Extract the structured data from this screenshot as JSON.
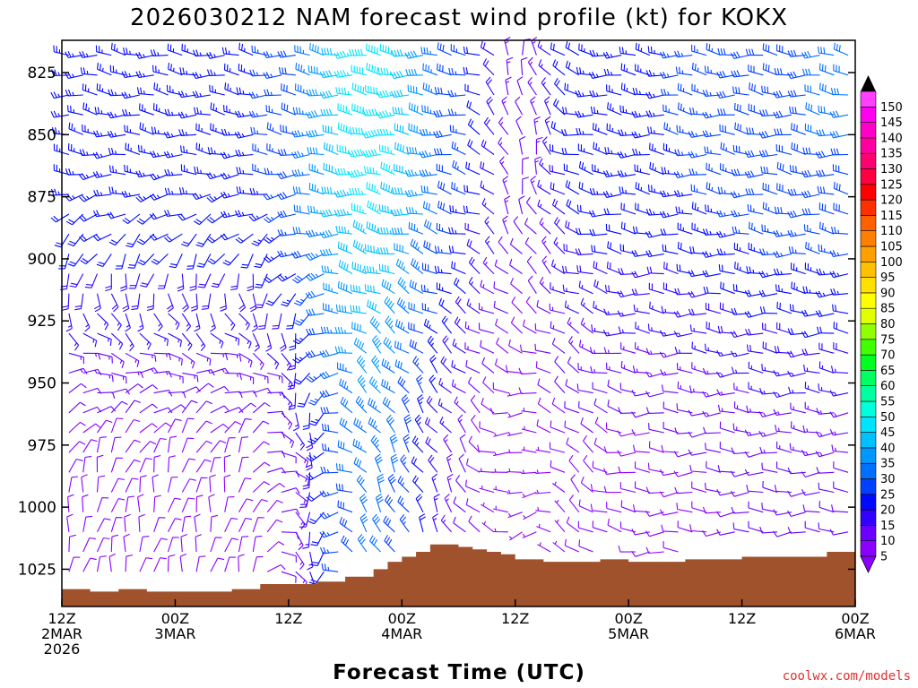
{
  "chart_data": {
    "type": "wind-barb-profile",
    "title": "2026030212 NAM forecast wind profile (kt) for KOKX",
    "xlabel": "Forecast Time (UTC)",
    "credit": "coolwx.com/models",
    "x_ticks": [
      {
        "hours": 0,
        "lines": [
          "12Z",
          "2MAR",
          "2026"
        ]
      },
      {
        "hours": 12,
        "lines": [
          "00Z",
          "3MAR"
        ]
      },
      {
        "hours": 24,
        "lines": [
          "12Z"
        ]
      },
      {
        "hours": 36,
        "lines": [
          "00Z",
          "4MAR"
        ]
      },
      {
        "hours": 48,
        "lines": [
          "12Z"
        ]
      },
      {
        "hours": 60,
        "lines": [
          "00Z",
          "5MAR"
        ]
      },
      {
        "hours": 72,
        "lines": [
          "12Z"
        ]
      },
      {
        "hours": 84,
        "lines": [
          "00Z",
          "6MAR"
        ]
      }
    ],
    "xlim_hours": [
      0,
      84
    ],
    "y_axis": {
      "unit": "hPa",
      "inverted": true,
      "ticks": [
        "825",
        "850",
        "875",
        "900",
        "925",
        "950",
        "975",
        "1000",
        "1025"
      ],
      "ylim": [
        812,
        1040
      ]
    },
    "colorbar": {
      "unit": "kt",
      "levels": [
        "5",
        "10",
        "15",
        "20",
        "25",
        "30",
        "35",
        "40",
        "45",
        "50",
        "55",
        "60",
        "65",
        "70",
        "75",
        "80",
        "85",
        "90",
        "95",
        "100",
        "105",
        "110",
        "115",
        "120",
        "125",
        "130",
        "135",
        "140",
        "145",
        "150"
      ],
      "colors": [
        "#8c00ff",
        "#6a00ff",
        "#3300ff",
        "#0008ff",
        "#0040ff",
        "#0070ff",
        "#0098ff",
        "#00c0ff",
        "#00e4ff",
        "#00ffdc",
        "#00ffa0",
        "#00ff60",
        "#00ff20",
        "#40ff00",
        "#90ff00",
        "#e0ff00",
        "#ffff00",
        "#ffe000",
        "#ffc000",
        "#ffa000",
        "#ff8000",
        "#ff6000",
        "#ff3000",
        "#ff0000",
        "#ff0040",
        "#ff0070",
        "#ff00a0",
        "#ff00c8",
        "#ff00f0",
        "#ff40ff"
      ]
    },
    "surface_pressure_hpa": {
      "hours": [
        0,
        3,
        6,
        9,
        12,
        15,
        18,
        21,
        24,
        27,
        30,
        33,
        34.5,
        36,
        37.5,
        39,
        40.5,
        42,
        43.5,
        45,
        46.5,
        48,
        49.5,
        51,
        54,
        57,
        60,
        63,
        66,
        69,
        72,
        75,
        78,
        81,
        84
      ],
      "values": [
        1033,
        1034,
        1033,
        1034,
        1034,
        1034,
        1033,
        1031,
        1031,
        1030,
        1028,
        1025,
        1022,
        1020,
        1018,
        1015,
        1015,
        1016,
        1017,
        1018,
        1019,
        1021,
        1021,
        1022,
        1022,
        1021,
        1022,
        1022,
        1021,
        1021,
        1020,
        1020,
        1020,
        1018,
        1018
      ]
    },
    "wind_regimes": [
      {
        "hours": [
          0,
          12
        ],
        "low_level": "light northerly, 5-15 kt",
        "mid_level": "westerly, 20-30 kt"
      },
      {
        "hours": [
          24,
          38
        ],
        "low_level": "northerly to northwesterly, 20-35 kt",
        "mid_level": "westerly, 40-50 kt"
      },
      {
        "hours": [
          46,
          52
        ],
        "low_level": "light and variable, 5-15 kt",
        "mid_level": "northerly, 10-20 kt"
      },
      {
        "hours": [
          60,
          84
        ],
        "low_level": "light westerly, 5-15 kt",
        "mid_level": "westerly, 25-35 kt"
      }
    ]
  }
}
